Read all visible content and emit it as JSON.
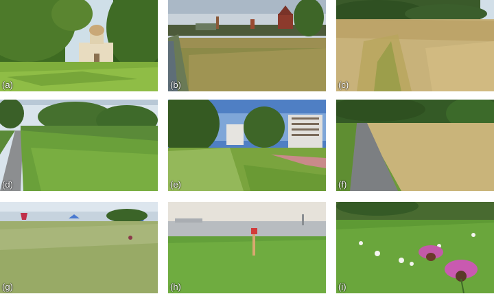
{
  "panels": [
    {
      "id": "a",
      "label": "(a)"
    },
    {
      "id": "b",
      "label": "(b)"
    },
    {
      "id": "c",
      "label": "(c)"
    },
    {
      "id": "d",
      "label": "(d)"
    },
    {
      "id": "e",
      "label": "(e)"
    },
    {
      "id": "f",
      "label": "(f)"
    },
    {
      "id": "g",
      "label": "(g)"
    },
    {
      "id": "h",
      "label": "(h)"
    },
    {
      "id": "i",
      "label": "(i)"
    }
  ]
}
